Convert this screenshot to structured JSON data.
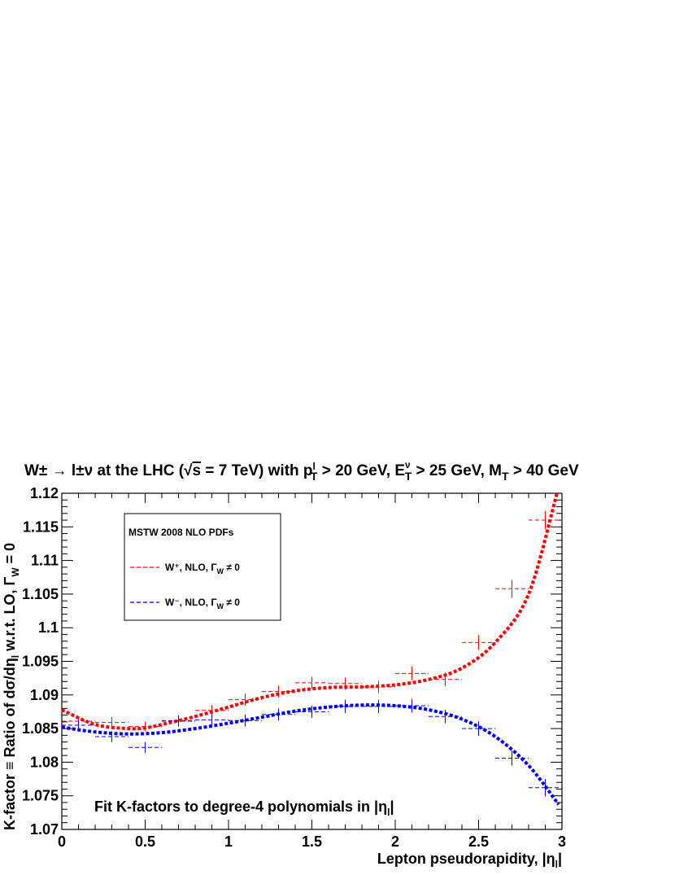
{
  "chart_data": {
    "type": "line",
    "title": "W± → l±ν at the LHC (√s = 7 TeV) with p_T^l > 20 GeV, E_T^ν > 25 GeV, M_T > 40 GeV",
    "title_parts": {
      "process": "W± → l±ν at the LHC (",
      "sqrt": "√",
      "s": "s",
      "energy": " = 7 TeV) with p",
      "sup_l": "l",
      "sub_T1": "T",
      "cut1": " > 20 GeV, E",
      "sup_nu": "ν",
      "sub_T2": "T",
      "cut2": " > 25 GeV, M",
      "sub_T3": "T",
      "cut3": " > 40 GeV"
    },
    "xlabel": "Lepton pseudorapidity, |ηl|",
    "xlabel_parts": {
      "main": "Lepton pseudorapidity, |η",
      "sub": "l",
      "end": "|"
    },
    "ylabel": "K-factor ≡ Ratio of dσ/dηl w.r.t. LO, ΓW = 0",
    "ylabel_parts": {
      "a": "K-factor ≡ Ratio of dσ/dη",
      "sub1": "l",
      "b": " w.r.t. LO, Γ",
      "sub2": "W",
      "c": " = 0"
    },
    "xlim": [
      0,
      3
    ],
    "ylim": [
      1.07,
      1.12
    ],
    "x_ticks": [
      0,
      0.5,
      1,
      1.5,
      2,
      2.5,
      3
    ],
    "x_tick_labels": [
      "0",
      "0.5",
      "1",
      "1.5",
      "2",
      "2.5",
      "3"
    ],
    "y_ticks": [
      1.07,
      1.075,
      1.08,
      1.085,
      1.09,
      1.095,
      1.1,
      1.105,
      1.11,
      1.115,
      1.12
    ],
    "y_tick_labels": [
      "1.07",
      "1.075",
      "1.08",
      "1.085",
      "1.09",
      "1.095",
      "1.1",
      "1.105",
      "1.11",
      "1.115",
      "1.12"
    ],
    "legend": {
      "title": "MSTW 2008 NLO PDFs",
      "placement": "top-left",
      "entries": [
        {
          "label": "W⁺, NLO, ΓW ≠ 0",
          "parts": {
            "a": "W⁺, NLO, Γ",
            "sub": "W",
            "b": " ≠ 0"
          },
          "color": "#ff0000"
        },
        {
          "label": "W⁻, NLO, ΓW ≠ 0",
          "parts": {
            "a": "W⁻, NLO, Γ",
            "sub": "W",
            "b": " ≠ 0"
          },
          "color": "#0000ff"
        }
      ]
    },
    "annotation": {
      "a": "Fit K-factors to degree-4 polynomials in |η",
      "sub": "l",
      "b": "|"
    },
    "series": [
      {
        "name": "W⁺, NLO, ΓW ≠ 0",
        "color": "#ff0000",
        "points": [
          {
            "x": 0.1,
            "y": 1.0861,
            "xerr": 0.1,
            "yerr": 0.0007
          },
          {
            "x": 0.3,
            "y": 1.0859,
            "xerr": 0.1,
            "yerr": 0.0008
          },
          {
            "x": 0.5,
            "y": 1.0853,
            "xerr": 0.1,
            "yerr": 0.0007
          },
          {
            "x": 0.7,
            "y": 1.0862,
            "xerr": 0.1,
            "yerr": 0.0008
          },
          {
            "x": 0.9,
            "y": 1.0877,
            "xerr": 0.1,
            "yerr": 0.0008
          },
          {
            "x": 1.1,
            "y": 1.0893,
            "xerr": 0.1,
            "yerr": 0.0009
          },
          {
            "x": 1.3,
            "y": 1.0905,
            "xerr": 0.1,
            "yerr": 0.0009
          },
          {
            "x": 1.5,
            "y": 1.0918,
            "xerr": 0.1,
            "yerr": 0.0009
          },
          {
            "x": 1.7,
            "y": 1.0917,
            "xerr": 0.1,
            "yerr": 0.0009
          },
          {
            "x": 1.9,
            "y": 1.0912,
            "xerr": 0.1,
            "yerr": 0.0009
          },
          {
            "x": 2.1,
            "y": 1.0932,
            "xerr": 0.1,
            "yerr": 0.001
          },
          {
            "x": 2.3,
            "y": 1.0923,
            "xerr": 0.1,
            "yerr": 0.001
          },
          {
            "x": 2.5,
            "y": 1.0978,
            "xerr": 0.1,
            "yerr": 0.0011
          },
          {
            "x": 2.7,
            "y": 1.1058,
            "xerr": 0.1,
            "yerr": 0.0013
          },
          {
            "x": 2.9,
            "y": 1.116,
            "xerr": 0.1,
            "yerr": 0.0014
          }
        ],
        "fit_points": [
          [
            0.0,
            1.0878
          ],
          [
            0.2,
            1.0856
          ],
          [
            0.4,
            1.085
          ],
          [
            0.5,
            1.0851
          ],
          [
            0.6,
            1.0856
          ],
          [
            0.8,
            1.0868
          ],
          [
            1.0,
            1.0882
          ],
          [
            1.2,
            1.0896
          ],
          [
            1.4,
            1.0906
          ],
          [
            1.6,
            1.0911
          ],
          [
            1.8,
            1.0912
          ],
          [
            2.0,
            1.0915
          ],
          [
            2.2,
            1.0923
          ],
          [
            2.4,
            1.094
          ],
          [
            2.6,
            1.0978
          ],
          [
            2.8,
            1.105
          ],
          [
            2.97,
            1.12
          ]
        ]
      },
      {
        "name": "W⁻, NLO, ΓW ≠ 0",
        "color": "#0000ff",
        "points": [
          {
            "x": 0.1,
            "y": 1.0855,
            "xerr": 0.1,
            "yerr": 0.0008
          },
          {
            "x": 0.3,
            "y": 1.0838,
            "xerr": 0.1,
            "yerr": 0.0008
          },
          {
            "x": 0.5,
            "y": 1.0822,
            "xerr": 0.1,
            "yerr": 0.0008
          },
          {
            "x": 0.7,
            "y": 1.0861,
            "xerr": 0.1,
            "yerr": 0.0008
          },
          {
            "x": 0.9,
            "y": 1.0863,
            "xerr": 0.1,
            "yerr": 0.0009
          },
          {
            "x": 1.1,
            "y": 1.0862,
            "xerr": 0.1,
            "yerr": 0.0009
          },
          {
            "x": 1.3,
            "y": 1.0871,
            "xerr": 0.1,
            "yerr": 0.0009
          },
          {
            "x": 1.5,
            "y": 1.0875,
            "xerr": 0.1,
            "yerr": 0.0009
          },
          {
            "x": 1.7,
            "y": 1.0883,
            "xerr": 0.1,
            "yerr": 0.001
          },
          {
            "x": 1.9,
            "y": 1.0883,
            "xerr": 0.1,
            "yerr": 0.001
          },
          {
            "x": 2.1,
            "y": 1.0884,
            "xerr": 0.1,
            "yerr": 0.001
          },
          {
            "x": 2.3,
            "y": 1.0868,
            "xerr": 0.1,
            "yerr": 0.001
          },
          {
            "x": 2.5,
            "y": 1.085,
            "xerr": 0.1,
            "yerr": 0.0011
          },
          {
            "x": 2.7,
            "y": 1.0806,
            "xerr": 0.1,
            "yerr": 0.0011
          },
          {
            "x": 2.9,
            "y": 1.0762,
            "xerr": 0.1,
            "yerr": 0.0013
          }
        ],
        "fit_points": [
          [
            0.0,
            1.0852
          ],
          [
            0.2,
            1.0845
          ],
          [
            0.4,
            1.0842
          ],
          [
            0.6,
            1.0844
          ],
          [
            0.8,
            1.085
          ],
          [
            1.0,
            1.0858
          ],
          [
            1.2,
            1.0867
          ],
          [
            1.4,
            1.0876
          ],
          [
            1.6,
            1.0882
          ],
          [
            1.8,
            1.0885
          ],
          [
            2.0,
            1.0884
          ],
          [
            2.2,
            1.0878
          ],
          [
            2.4,
            1.0864
          ],
          [
            2.6,
            1.0838
          ],
          [
            2.8,
            1.0795
          ],
          [
            2.98,
            1.0737
          ]
        ]
      }
    ]
  }
}
